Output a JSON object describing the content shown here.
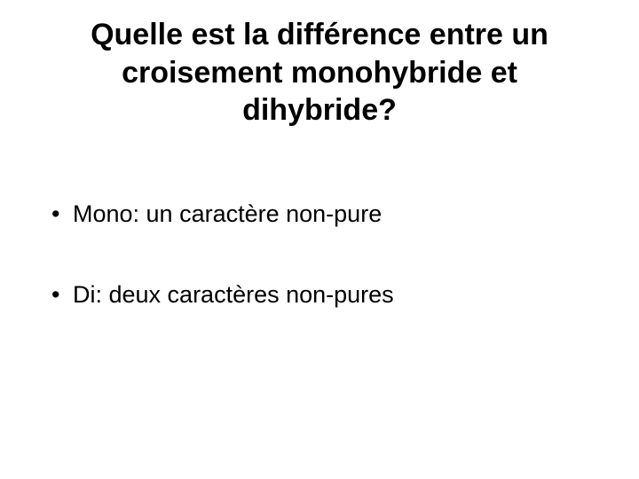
{
  "slide": {
    "title": "Quelle est la différence entre un croisement monohybride et dihybride?",
    "bullets": [
      {
        "text": "Mono:  un caractère non-pure"
      },
      {
        "text": "Di:   deux caractères non-pures"
      }
    ],
    "styling": {
      "background_color": "#ffffff",
      "text_color": "#000000",
      "title_fontsize": 34,
      "title_fontweight": "bold",
      "bullet_fontsize": 27,
      "font_family": "Arial"
    }
  }
}
